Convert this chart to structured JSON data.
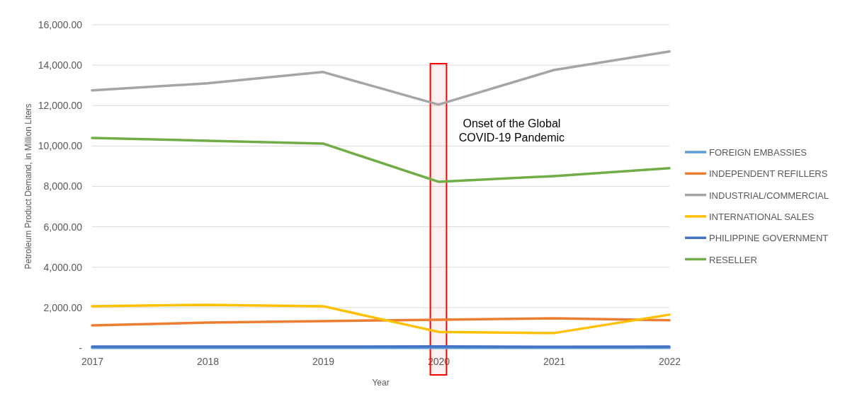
{
  "chart_data": {
    "type": "line",
    "xlabel": "Year",
    "ylabel": "Petroleum Product Demand, in Million Liters",
    "x": [
      2017,
      2018,
      2019,
      2020,
      2021,
      2022
    ],
    "xlim": [
      2017,
      2022
    ],
    "xticks": [
      2017,
      2018,
      2019,
      2020,
      2021,
      2022
    ],
    "ylim": [
      0,
      16000
    ],
    "yticks": [
      {
        "value": 0,
        "label": "-"
      },
      {
        "value": 2000,
        "label": "2,000.00"
      },
      {
        "value": 4000,
        "label": "4,000.00"
      },
      {
        "value": 6000,
        "label": "6,000.00"
      },
      {
        "value": 8000,
        "label": "8,000.00"
      },
      {
        "value": 10000,
        "label": "10,000.00"
      },
      {
        "value": 12000,
        "label": "12,000.00"
      },
      {
        "value": 14000,
        "label": "14,000.00"
      },
      {
        "value": 16000,
        "label": "16,000.00"
      }
    ],
    "grid": "y",
    "legend": "right",
    "marker": "none",
    "line_style": "solid",
    "bands": [
      {
        "axis": "x",
        "from": 2019.93,
        "to": 2020.07,
        "label": "Onset of the Global COVID-19 Pandemic",
        "color": "#ff0000"
      }
    ],
    "series": [
      {
        "name": "FOREIGN EMBASSIES",
        "color": "#5b9bd5",
        "values": [
          10,
          10,
          10,
          10,
          10,
          10
        ]
      },
      {
        "name": "INDEPENDENT REFILLERS",
        "color": "#ed7d31",
        "values": [
          1120,
          1260,
          1330,
          1400,
          1470,
          1370
        ]
      },
      {
        "name": "INDUSTRIAL/COMMERCIAL",
        "color": "#a5a5a5",
        "values": [
          12750,
          13100,
          13660,
          12050,
          13760,
          14680
        ]
      },
      {
        "name": "INTERNATIONAL SALES",
        "color": "#ffc000",
        "values": [
          2070,
          2140,
          2070,
          800,
          740,
          1650
        ]
      },
      {
        "name": "PHILIPPINE GOVERNMENT",
        "color": "#4472c4",
        "values": [
          70,
          70,
          70,
          80,
          60,
          70
        ]
      },
      {
        "name": "RESELLER",
        "color": "#70ad47",
        "values": [
          10400,
          10260,
          10120,
          8230,
          8510,
          8900
        ]
      }
    ]
  }
}
